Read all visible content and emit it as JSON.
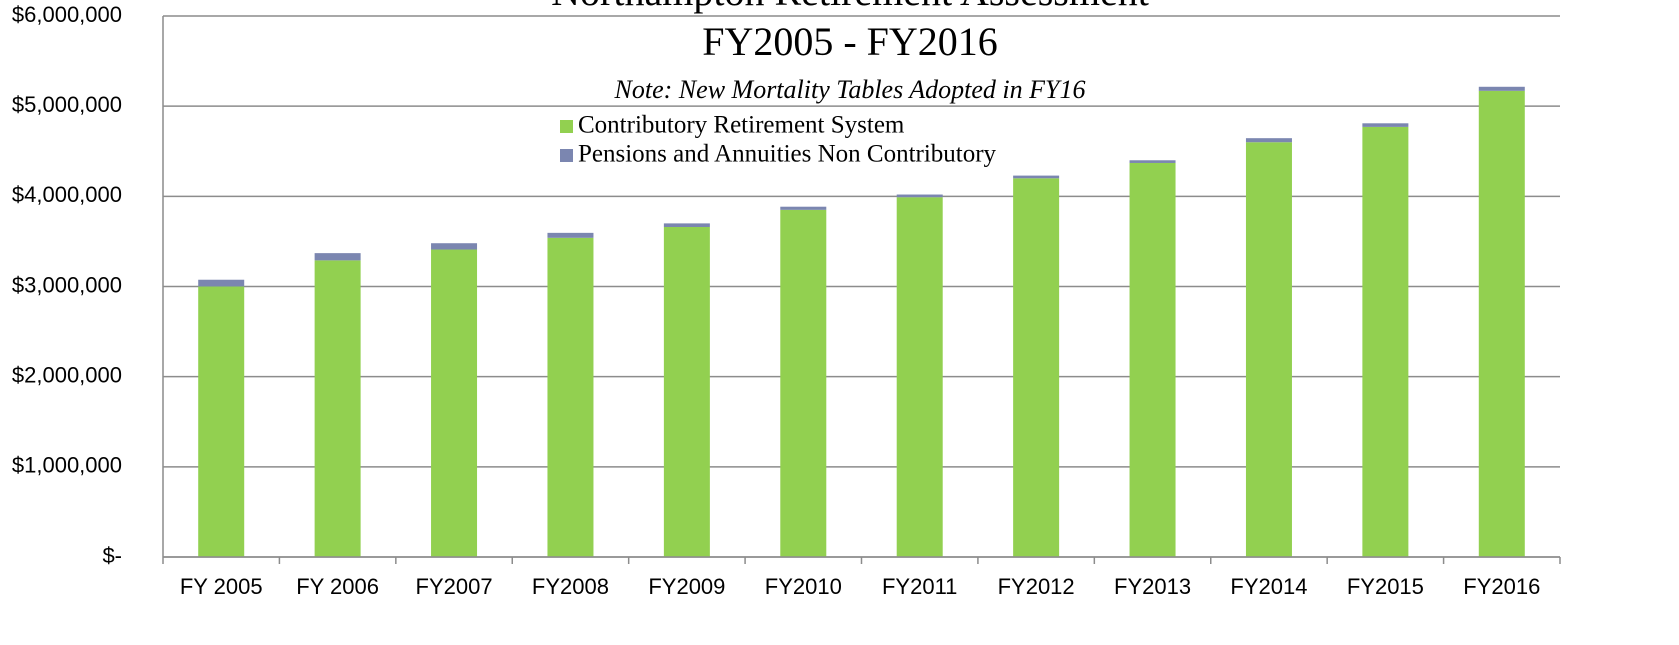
{
  "chart_data": {
    "type": "stacked_bar",
    "title": "Northampton Retirement Assessment",
    "subtitle": "FY2005 - FY2016",
    "note": "Note:  New Mortality Tables Adopted in FY16",
    "categories": [
      "FY 2005",
      "FY 2006",
      "FY2007",
      "FY2008",
      "FY2009",
      "FY2010",
      "FY2011",
      "FY2012",
      "FY2013",
      "FY2014",
      "FY2015",
      "FY2016"
    ],
    "series": [
      {
        "name": "Contributory Retirement System",
        "color": "#92d050",
        "values": [
          3000000,
          3290000,
          3410000,
          3540000,
          3660000,
          3850000,
          3990000,
          4200000,
          4370000,
          4600000,
          4770000,
          5170000
        ]
      },
      {
        "name": "Pensions and Annuities Non Contributory",
        "color": "#7b86b0",
        "values": [
          75000,
          80000,
          70000,
          55000,
          40000,
          35000,
          30000,
          30000,
          30000,
          45000,
          40000,
          45000
        ]
      }
    ],
    "ylim": [
      0,
      6000000
    ],
    "yticks": [
      {
        "value": 0,
        "label": "$-"
      },
      {
        "value": 1000000,
        "label": "$1,000,000"
      },
      {
        "value": 2000000,
        "label": "$2,000,000"
      },
      {
        "value": 3000000,
        "label": "$3,000,000"
      },
      {
        "value": 4000000,
        "label": "$4,000,000"
      },
      {
        "value": 5000000,
        "label": "$5,000,000"
      },
      {
        "value": 6000000,
        "label": "$6,000,000"
      }
    ],
    "grid": true
  }
}
